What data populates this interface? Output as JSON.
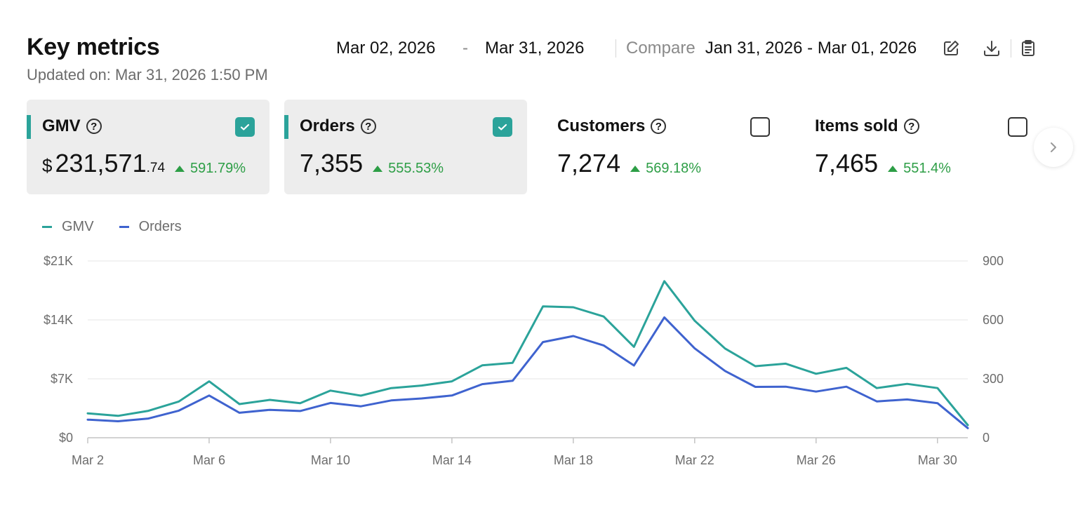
{
  "header": {
    "title": "Key metrics",
    "updated": "Updated on: Mar 31, 2026 1:50 PM",
    "date_start": "Mar 02, 2026",
    "date_dash": "-",
    "date_end": "Mar 31, 2026",
    "compare_label": "Compare",
    "compare_range": "Jan 31, 2026 - Mar 01, 2026",
    "icons": [
      "edit-icon",
      "download-icon",
      "clipboard-icon"
    ]
  },
  "cards": [
    {
      "name": "GMV",
      "currency": "$",
      "value_main": "231,571",
      "value_decimal": ".74",
      "change": "591.79%",
      "selected": true
    },
    {
      "name": "Orders",
      "currency": "",
      "value_main": "7,355",
      "value_decimal": "",
      "change": "555.53%",
      "selected": true
    },
    {
      "name": "Customers",
      "currency": "",
      "value_main": "7,274",
      "value_decimal": "",
      "change": "569.18%",
      "selected": false
    },
    {
      "name": "Items sold",
      "currency": "",
      "value_main": "7,465",
      "value_decimal": "",
      "change": "551.4%",
      "selected": false
    }
  ],
  "colors": {
    "accent": "#2ba39a",
    "gmv": "#2ba39a",
    "orders": "#3f63cf",
    "positive": "#2d9e46"
  },
  "chart_data": {
    "type": "line",
    "x": [
      "Mar 2",
      "Mar 3",
      "Mar 4",
      "Mar 5",
      "Mar 6",
      "Mar 7",
      "Mar 8",
      "Mar 9",
      "Mar 10",
      "Mar 11",
      "Mar 12",
      "Mar 13",
      "Mar 14",
      "Mar 15",
      "Mar 16",
      "Mar 17",
      "Mar 18",
      "Mar 19",
      "Mar 20",
      "Mar 21",
      "Mar 22",
      "Mar 23",
      "Mar 24",
      "Mar 25",
      "Mar 26",
      "Mar 27",
      "Mar 28",
      "Mar 29",
      "Mar 30",
      "Mar 31"
    ],
    "x_tick_labels": [
      "Mar 2",
      "Mar 6",
      "Mar 10",
      "Mar 14",
      "Mar 18",
      "Mar 22",
      "Mar 26",
      "Mar 30"
    ],
    "series": [
      {
        "name": "GMV",
        "axis": "left",
        "color": "#2ba39a",
        "values": [
          2900,
          2600,
          3200,
          4300,
          6700,
          4000,
          4500,
          4100,
          5600,
          5000,
          5900,
          6200,
          6700,
          8600,
          8900,
          15600,
          15500,
          14400,
          10800,
          18600,
          13900,
          10600,
          8500,
          8800,
          7600,
          8300,
          5900,
          6400,
          5900,
          1500
        ]
      },
      {
        "name": "Orders",
        "axis": "right",
        "color": "#3f63cf",
        "values": [
          92,
          84,
          98,
          138,
          215,
          127,
          142,
          136,
          177,
          160,
          190,
          200,
          215,
          273,
          290,
          487,
          518,
          470,
          368,
          613,
          455,
          340,
          259,
          260,
          235,
          260,
          185,
          195,
          176,
          49
        ]
      }
    ],
    "y_left": {
      "min": 0,
      "max": 21000,
      "ticks": [
        0,
        7000,
        14000,
        21000
      ],
      "tick_labels": [
        "$0",
        "$7K",
        "$14K",
        "$21K"
      ]
    },
    "y_right": {
      "min": 0,
      "max": 900,
      "ticks": [
        0,
        300,
        600,
        900
      ],
      "tick_labels": [
        "0",
        "300",
        "600",
        "900"
      ]
    },
    "legend": "top-left",
    "grid": true
  }
}
